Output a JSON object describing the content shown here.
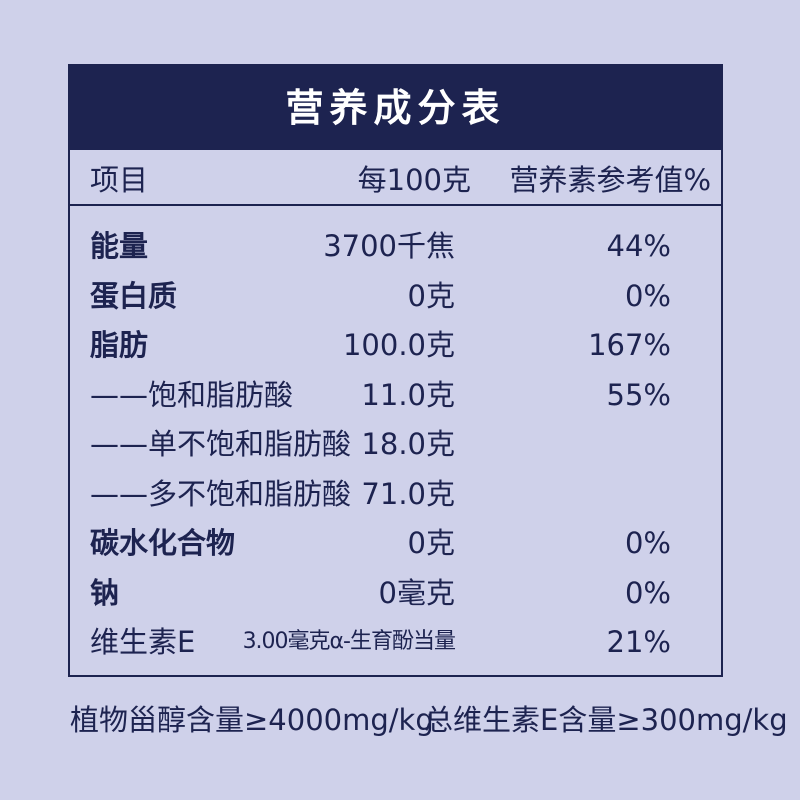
{
  "title": "营养成分表",
  "table": {
    "header": [
      "项目",
      "每100克",
      "营养素参考值%"
    ],
    "rows": [
      {
        "cells": [
          "能量",
          "3700千焦",
          "44%"
        ],
        "bold": true
      },
      {
        "cells": [
          "蛋白质",
          "0克",
          "0%"
        ],
        "bold": true
      },
      {
        "cells": [
          "脂肪",
          "100.0克",
          "167%"
        ],
        "bold": true
      },
      {
        "cells": [
          "——饱和脂肪酸",
          "11.0克",
          "55%"
        ],
        "bold": false
      },
      {
        "cells": [
          "——单不饱和脂肪酸",
          "18.0克"
        ],
        "bold": false
      },
      {
        "cells": [
          "——多不饱和脂肪酸",
          "71.0克"
        ],
        "bold": false
      },
      {
        "cells": [
          "碳水化合物",
          "0克",
          "0%"
        ],
        "bold": true
      },
      {
        "cells": [
          "钠",
          "0毫克",
          "0%"
        ],
        "bold": true
      },
      {
        "cells": [
          "维生素E",
          "3.00毫克α-生育酚当量",
          "21%"
        ],
        "bold": false
      }
    ]
  },
  "footer": [
    "植物甾醇含量≥4000mg/kg",
    "总维生素E含量≥300mg/kg"
  ]
}
